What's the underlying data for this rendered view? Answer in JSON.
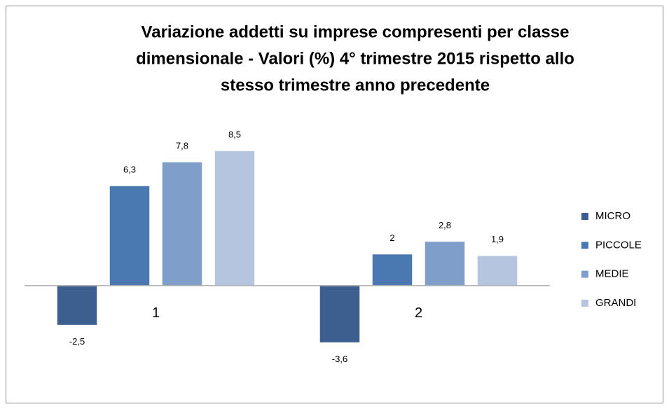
{
  "chart_data": {
    "type": "bar",
    "title": [
      "Variazione addetti su imprese compresenti per classe",
      "dimensionale - Valori (%) 4° trimestre 2015 rispetto allo",
      "stesso trimestre anno precedente"
    ],
    "categories": [
      "1",
      "2"
    ],
    "series": [
      {
        "name": "MICRO",
        "color": "#3d5f8f",
        "values": [
          -2.5,
          -3.6
        ],
        "value_labels": [
          "-2,5",
          "-3,6"
        ]
      },
      {
        "name": "PICCOLE",
        "color": "#4a78b0",
        "values": [
          6.3,
          2
        ],
        "value_labels": [
          "6,3",
          "2"
        ]
      },
      {
        "name": "MEDIE",
        "color": "#7f9ec9",
        "values": [
          7.8,
          2.8
        ],
        "value_labels": [
          "7,8",
          "2,8"
        ]
      },
      {
        "name": "GRANDI",
        "color": "#b5c4df",
        "values": [
          8.5,
          1.9
        ],
        "value_labels": [
          "8,5",
          "1,9"
        ]
      }
    ],
    "ylim": [
      -6,
      10
    ],
    "legend": "right"
  }
}
